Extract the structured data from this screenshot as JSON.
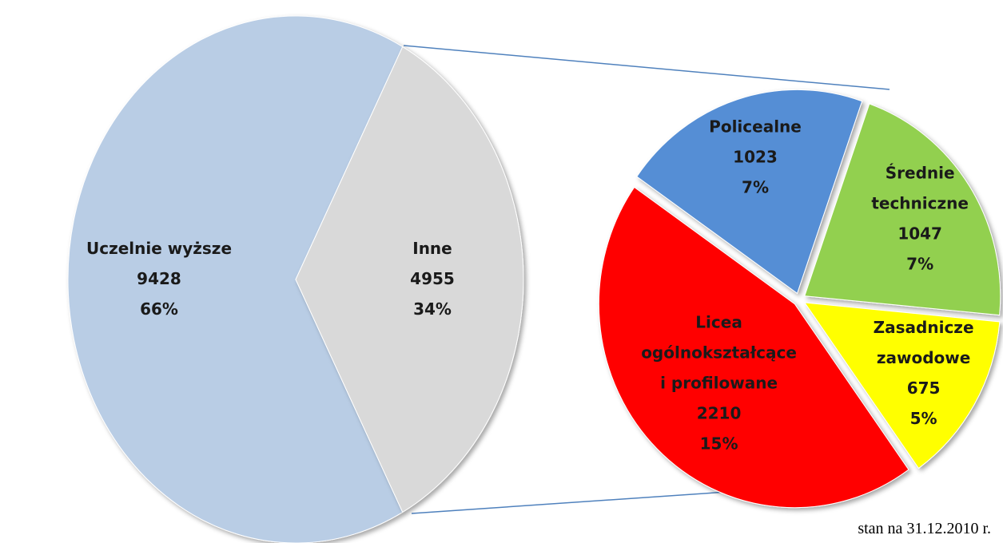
{
  "chart_data": [
    {
      "type": "pie",
      "categories": [
        [
          "Uczelnie wyższe"
        ],
        [
          "Inne"
        ]
      ],
      "values": [
        9428,
        4955
      ],
      "percent_labels": [
        "66%",
        "34%"
      ],
      "colors": [
        "#b9cde5",
        "#d9d9d9"
      ],
      "annotation": "stan na 31.12.2010 r."
    },
    {
      "type": "pie",
      "categories": [
        [
          "Policealne"
        ],
        [
          "Średnie",
          "techniczne"
        ],
        [
          "Zasadnicze",
          "zawodowe"
        ],
        [
          "Licea",
          "ogólnokształcące",
          "i profilowane"
        ]
      ],
      "values": [
        1023,
        1047,
        675,
        2210
      ],
      "percent_labels": [
        "7%",
        "7%",
        "5%",
        "15%"
      ],
      "colors": [
        "#558ed5",
        "#92d050",
        "#ffff00",
        "#ff0000"
      ]
    }
  ]
}
